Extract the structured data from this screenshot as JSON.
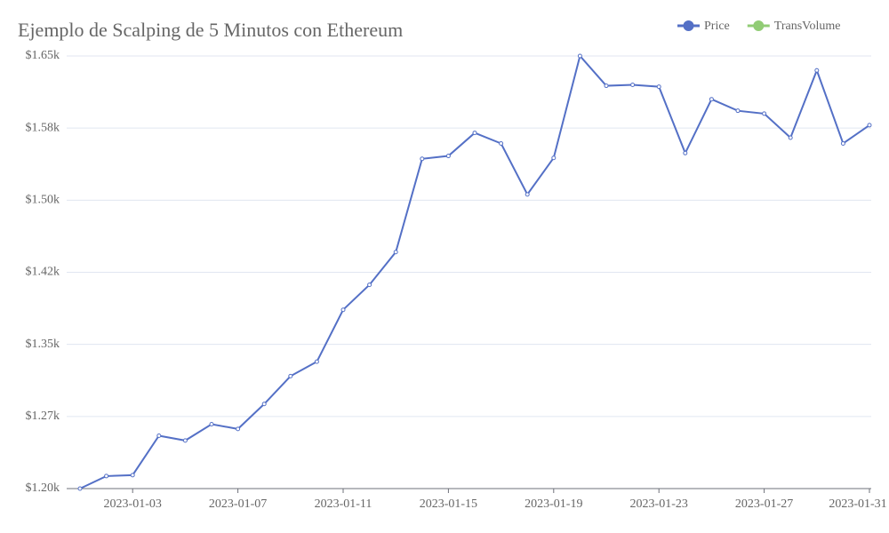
{
  "chart_data": {
    "type": "line",
    "title": "Ejemplo de Scalping de 5 Minutos con Ethereum",
    "x": [
      "2023-01-01",
      "2023-01-02",
      "2023-01-03",
      "2023-01-04",
      "2023-01-05",
      "2023-01-06",
      "2023-01-07",
      "2023-01-08",
      "2023-01-09",
      "2023-01-10",
      "2023-01-11",
      "2023-01-12",
      "2023-01-13",
      "2023-01-14",
      "2023-01-15",
      "2023-01-16",
      "2023-01-17",
      "2023-01-18",
      "2023-01-19",
      "2023-01-20",
      "2023-01-21",
      "2023-01-22",
      "2023-01-23",
      "2023-01-24",
      "2023-01-25",
      "2023-01-26",
      "2023-01-27",
      "2023-01-28",
      "2023-01-29",
      "2023-01-30",
      "2023-01-31"
    ],
    "series": [
      {
        "name": "Price",
        "color": "#5470c6",
        "values": [
          1200,
          1213,
          1214,
          1255,
          1250,
          1267,
          1262,
          1288,
          1317,
          1332,
          1386,
          1412,
          1446,
          1543,
          1546,
          1570,
          1559,
          1506,
          1544,
          1650,
          1619,
          1620,
          1618,
          1549,
          1605,
          1593,
          1590,
          1565,
          1635,
          1559,
          1578
        ]
      },
      {
        "name": "TransVolume",
        "color": "#91cc75",
        "values": [
          null,
          null,
          null,
          null,
          null,
          null,
          null,
          null,
          null,
          null,
          null,
          null,
          null,
          null,
          null,
          null,
          null,
          null,
          null,
          null,
          null,
          null,
          null,
          null,
          null,
          null,
          null,
          null,
          null,
          null,
          null
        ]
      }
    ],
    "ylim": [
      1200,
      1650
    ],
    "yticks": [
      {
        "value": 1200,
        "label": "$1.20k"
      },
      {
        "value": 1275,
        "label": "$1.27k"
      },
      {
        "value": 1350,
        "label": "$1.35k"
      },
      {
        "value": 1425,
        "label": "$1.42k"
      },
      {
        "value": 1500,
        "label": "$1.50k"
      },
      {
        "value": 1575,
        "label": "$1.58k"
      },
      {
        "value": 1650,
        "label": "$1.65k"
      }
    ],
    "xticks": [
      "2023-01-03",
      "2023-01-07",
      "2023-01-11",
      "2023-01-15",
      "2023-01-19",
      "2023-01-23",
      "2023-01-27",
      "2023-01-31"
    ],
    "grid": true
  }
}
